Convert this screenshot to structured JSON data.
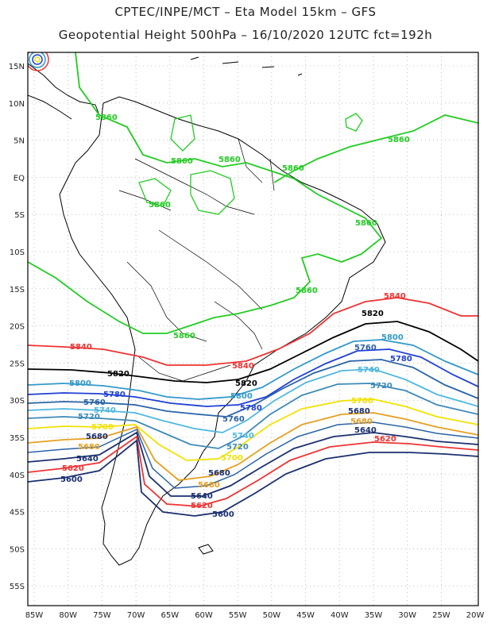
{
  "header": {
    "line1": "CPTEC/INPE/MCT –  Eta Model 15km – GFS",
    "line2": "Geopotential Height 500hPa – 16/10/2020 12UTC fct=192h"
  },
  "axes": {
    "lat_labels": [
      "15N",
      "10N",
      "5N",
      "EQ",
      "5S",
      "10S",
      "15S",
      "20S",
      "25S",
      "30S",
      "35S",
      "40S",
      "45S",
      "50S",
      "55S"
    ],
    "lon_labels": [
      "85W",
      "80W",
      "75W",
      "70W",
      "65W",
      "60W",
      "55W",
      "50W",
      "45W",
      "40W",
      "35W",
      "30W",
      "25W",
      "20W"
    ]
  },
  "colors": {
    "c5860": "#22cc22",
    "c5840": "#ee3333",
    "c5820": "#000000",
    "c5800": "#3399cc",
    "c5780": "#1f3fd6",
    "c5760": "#2a63a8",
    "c5740": "#4fb8e0",
    "c5720": "#3e8ab8",
    "c5700": "#f2e200",
    "c5680": "#e6a020",
    "c5640": "#1a2f70",
    "c5620": "#ee3333",
    "c5600": "#1a2f70",
    "coast": "#000000",
    "grid": "#9a9a9a"
  },
  "contour_labels": {
    "l5860": "5860",
    "l5840": "5840",
    "l5820": "5820",
    "l5800": "5800",
    "l5780": "5780",
    "l5760": "5760",
    "l5740": "5740",
    "l5720": "5720",
    "l5700": "5700",
    "l5680": "5680",
    "l5640": "5640",
    "l5620": "5620",
    "l5600": "5600"
  }
}
